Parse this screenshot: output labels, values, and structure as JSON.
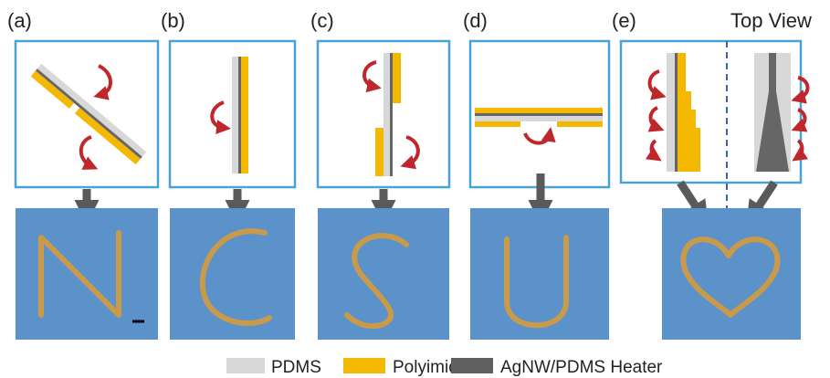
{
  "panels": [
    {
      "label": "(a)"
    },
    {
      "label": "(b)"
    },
    {
      "label": "(c)"
    },
    {
      "label": "(d)"
    },
    {
      "label": "(e)",
      "note": "Top View"
    }
  ],
  "legend": [
    "PDMS",
    "Polyimide",
    "AgNW/PDMS Heater"
  ]
}
